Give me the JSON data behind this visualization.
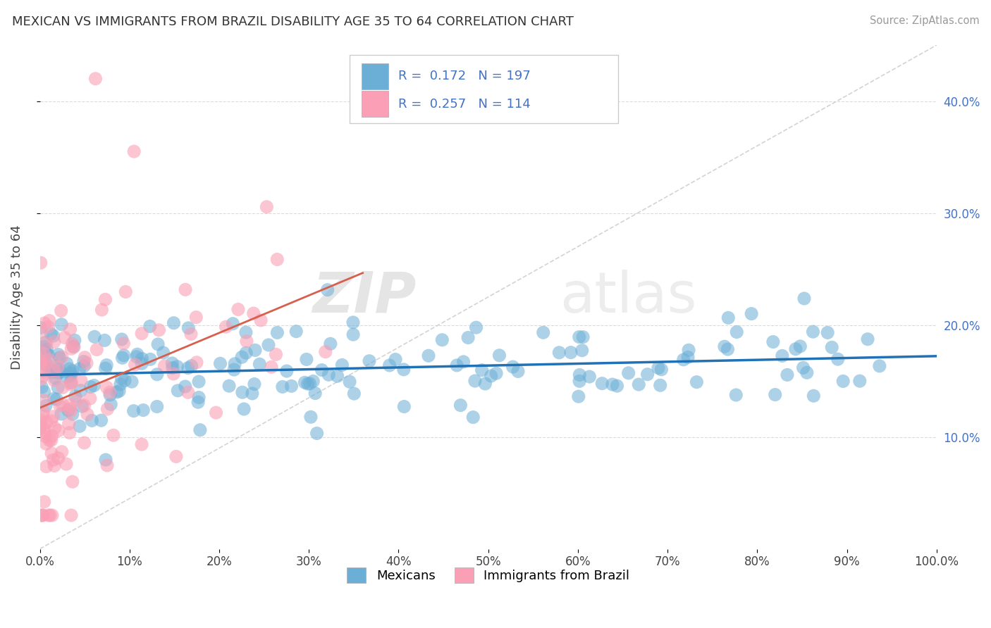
{
  "title": "MEXICAN VS IMMIGRANTS FROM BRAZIL DISABILITY AGE 35 TO 64 CORRELATION CHART",
  "source": "Source: ZipAtlas.com",
  "ylabel": "Disability Age 35 to 64",
  "legend_label_1": "Mexicans",
  "legend_label_2": "Immigrants from Brazil",
  "r1": 0.172,
  "n1": 197,
  "r2": 0.257,
  "n2": 114,
  "color_blue": "#6baed6",
  "color_pink": "#fa9fb5",
  "color_blue_line": "#2171b5",
  "color_pink_line": "#d6604d",
  "color_diag": "#cccccc",
  "xlim": [
    0.0,
    1.0
  ],
  "ylim": [
    0.0,
    0.45
  ],
  "yticks": [
    0.1,
    0.2,
    0.3,
    0.4
  ],
  "xticks": [
    0.0,
    0.1,
    0.2,
    0.3,
    0.4,
    0.5,
    0.6,
    0.7,
    0.8,
    0.9,
    1.0
  ],
  "seed_blue": 42,
  "seed_pink": 99,
  "n_blue": 197,
  "n_pink": 114,
  "watermark_zip": "ZIP",
  "watermark_atlas": "atlas",
  "background_color": "#ffffff",
  "grid_color": "#cccccc"
}
